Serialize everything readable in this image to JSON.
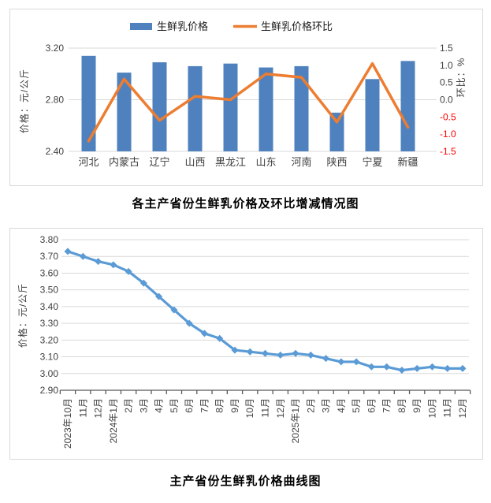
{
  "page": {
    "background": "#FFFFFF"
  },
  "colors": {
    "bar_blue": "#4E81BD",
    "line_orange": "#ED7D31",
    "curve_blue": "#5B9BD5",
    "grid": "#D9D9D9",
    "axis_line": "#595959",
    "text": "#404040",
    "negative": "#FF0000",
    "legend_text": "#1a1a1a",
    "panel_border": "#D9D9D9"
  },
  "chart_data": [
    {
      "type": "bar",
      "subtype": "bar-line-combo",
      "title": "各主产省份生鲜乳价格及环比增减情况图",
      "categories": [
        "河北",
        "内蒙古",
        "辽宁",
        "山西",
        "黑龙江",
        "山东",
        "河南",
        "陕西",
        "宁夏",
        "新疆"
      ],
      "series": [
        {
          "name": "生鲜乳价格",
          "type": "bar",
          "axis": "left",
          "values": [
            3.14,
            3.01,
            3.09,
            3.06,
            3.08,
            3.05,
            3.06,
            2.7,
            2.96,
            3.1
          ]
        },
        {
          "name": "生鲜乳价格环比",
          "type": "line",
          "axis": "right",
          "values": [
            -1.2,
            0.6,
            -0.6,
            0.1,
            0.0,
            0.75,
            0.65,
            -0.65,
            1.05,
            -0.8
          ]
        }
      ],
      "left_axis": {
        "title": "价格：元/公斤",
        "min": 2.4,
        "max": 3.2,
        "ticks": [
          "3.20",
          "2.80",
          "2.40"
        ],
        "tick_values": [
          3.2,
          2.8,
          2.4
        ]
      },
      "right_axis": {
        "title": "环比：%",
        "min": -1.5,
        "max": 1.5,
        "ticks": [
          "1.5",
          "1.0",
          "0.5",
          "0.0",
          "-0.5",
          "-1.0",
          "-1.5"
        ],
        "tick_values": [
          1.5,
          1.0,
          0.5,
          0.0,
          -0.5,
          -1.0,
          -1.5
        ]
      },
      "legend_position": "top",
      "grid": true
    },
    {
      "type": "line",
      "title": "主产省份生鲜乳价格曲线图",
      "categories": [
        "2023年10月",
        "11月",
        "12月",
        "2024年1月",
        "2月",
        "3月",
        "4月",
        "5月",
        "6月",
        "7月",
        "8月",
        "9月",
        "10月",
        "11月",
        "12月",
        "2025年1月",
        "2月",
        "3月",
        "4月",
        "5月",
        "6月",
        "7月",
        "8月",
        "9月",
        "10月",
        "11月",
        "12月"
      ],
      "series": [
        {
          "name": "生鲜乳价格",
          "type": "line",
          "values": [
            3.73,
            3.7,
            3.67,
            3.65,
            3.61,
            3.54,
            3.46,
            3.38,
            3.3,
            3.24,
            3.21,
            3.14,
            3.13,
            3.12,
            3.11,
            3.12,
            3.11,
            3.09,
            3.07,
            3.07,
            3.04,
            3.04,
            3.02,
            3.03,
            3.04,
            3.03,
            3.03
          ]
        }
      ],
      "y_axis": {
        "title": "价格：元/公斤",
        "min": 2.9,
        "max": 3.8,
        "ticks": [
          "3.80",
          "3.70",
          "3.60",
          "3.50",
          "3.40",
          "3.30",
          "3.20",
          "3.10",
          "3.00",
          "2.90"
        ],
        "tick_values": [
          3.8,
          3.7,
          3.6,
          3.5,
          3.4,
          3.3,
          3.2,
          3.1,
          3.0,
          2.9
        ]
      },
      "grid": true,
      "marker": "diamond"
    }
  ]
}
